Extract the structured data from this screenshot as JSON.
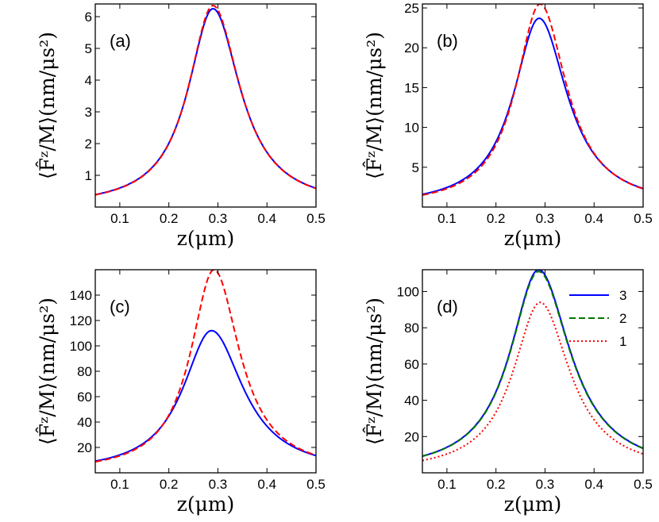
{
  "colors": {
    "blue": "#0000ff",
    "red": "#ff0000",
    "green": "#007700"
  },
  "chart_data": [
    {
      "type": "line",
      "panel_label": "(a)",
      "xlabel": "z(μm)",
      "ylabel": "⟨F̂ᶻ/M⟩(nm/μs²)",
      "xlim": [
        0.05,
        0.5
      ],
      "ylim": [
        0,
        6.4
      ],
      "xticks": [
        0.1,
        0.2,
        0.3,
        0.4,
        0.5
      ],
      "xtick_labels": [
        "0.1",
        "0.2",
        "0.3",
        "0.4",
        "0.5"
      ],
      "yticks": [
        1,
        2,
        3,
        4,
        5,
        6
      ],
      "ytick_labels": [
        "1",
        "2",
        "3",
        "4",
        "5",
        "6"
      ],
      "series": [
        {
          "name": "solid",
          "color": "blue",
          "style": "solid",
          "peak_x": 0.29,
          "peak": 6.25,
          "sigma_left": 0.062,
          "sigma_right": 0.068
        },
        {
          "name": "dashed",
          "color": "red",
          "style": "dashed",
          "peak_x": 0.29,
          "peak": 6.35,
          "sigma_left": 0.061,
          "sigma_right": 0.067
        }
      ]
    },
    {
      "type": "line",
      "panel_label": "(b)",
      "xlabel": "z(μm)",
      "ylabel": "⟨F̂ᶻ/M⟩(nm/μs²)",
      "xlim": [
        0.05,
        0.5
      ],
      "ylim": [
        0,
        25.5
      ],
      "xticks": [
        0.1,
        0.2,
        0.3,
        0.4,
        0.5
      ],
      "xtick_labels": [
        "0.1",
        "0.2",
        "0.3",
        "0.4",
        "0.5"
      ],
      "yticks": [
        5,
        10,
        15,
        20,
        25
      ],
      "ytick_labels": [
        "5",
        "10",
        "15",
        "20",
        "25"
      ],
      "series": [
        {
          "name": "solid",
          "color": "blue",
          "style": "solid",
          "peak_x": 0.288,
          "peak": 23.7,
          "sigma_left": 0.064,
          "sigma_right": 0.07
        },
        {
          "name": "dashed",
          "color": "red",
          "style": "dashed",
          "peak_x": 0.29,
          "peak": 25.5,
          "sigma_left": 0.06,
          "sigma_right": 0.066
        }
      ]
    },
    {
      "type": "line",
      "panel_label": "(c)",
      "xlabel": "z(μm)",
      "ylabel": "⟨F̂ᶻ/M⟩(nm/μs²)",
      "xlim": [
        0.05,
        0.5
      ],
      "ylim": [
        0,
        160
      ],
      "xticks": [
        0.1,
        0.2,
        0.3,
        0.4,
        0.5
      ],
      "xtick_labels": [
        "0.1",
        "0.2",
        "0.3",
        "0.4",
        "0.5"
      ],
      "yticks": [
        20,
        40,
        60,
        80,
        100,
        120,
        140
      ],
      "ytick_labels": [
        "20",
        "40",
        "60",
        "80",
        "100",
        "120",
        "140"
      ],
      "series": [
        {
          "name": "solid",
          "color": "blue",
          "style": "solid",
          "peak_x": 0.287,
          "peak": 112,
          "sigma_left": 0.071,
          "sigma_right": 0.079
        },
        {
          "name": "dashed",
          "color": "red",
          "style": "dashed",
          "peak_x": 0.292,
          "peak": 160,
          "sigma_left": 0.058,
          "sigma_right": 0.064
        }
      ]
    },
    {
      "type": "line",
      "panel_label": "(d)",
      "xlabel": "z(μm)",
      "ylabel": "⟨F̂ᶻ/M⟩(nm/μs²)",
      "xlim": [
        0.05,
        0.5
      ],
      "ylim": [
        0,
        112
      ],
      "xticks": [
        0.1,
        0.2,
        0.3,
        0.4,
        0.5
      ],
      "xtick_labels": [
        "0.1",
        "0.2",
        "0.3",
        "0.4",
        "0.5"
      ],
      "yticks": [
        20,
        40,
        60,
        80,
        100
      ],
      "ytick_labels": [
        "20",
        "40",
        "60",
        "80",
        "100"
      ],
      "legend": "top-right",
      "series": [
        {
          "name": "3",
          "color": "blue",
          "style": "solid",
          "peak_x": 0.287,
          "peak": 112,
          "sigma_left": 0.071,
          "sigma_right": 0.079
        },
        {
          "name": "2",
          "color": "green",
          "style": "dashed",
          "peak_x": 0.287,
          "peak": 111,
          "sigma_left": 0.071,
          "sigma_right": 0.079
        },
        {
          "name": "1",
          "color": "red",
          "style": "dotted",
          "peak_x": 0.29,
          "peak": 94,
          "sigma_left": 0.067,
          "sigma_right": 0.074
        }
      ]
    }
  ]
}
